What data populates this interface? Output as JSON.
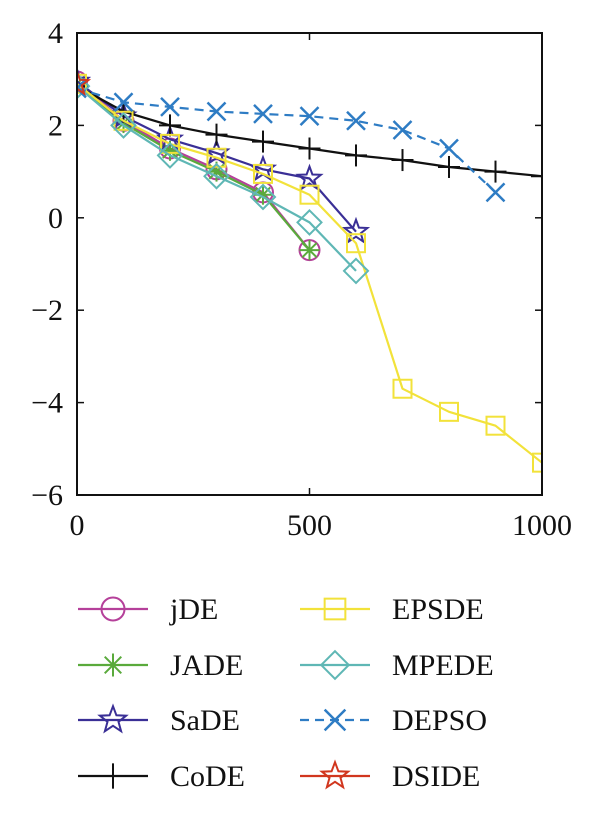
{
  "chart_data": {
    "type": "line",
    "title": "",
    "xlabel": "",
    "ylabel": "",
    "xlim": [
      0,
      1000
    ],
    "ylim": [
      -6,
      4
    ],
    "xticks": [
      0,
      500,
      1000
    ],
    "yticks": [
      4,
      2,
      0,
      -2,
      -4,
      -6
    ],
    "xtick_labels": [
      "0",
      "500",
      "1000"
    ],
    "ytick_labels": [
      "4",
      "2",
      "0",
      "−2",
      "−4",
      "−6"
    ],
    "grid": false,
    "legend_position": "below",
    "series": [
      {
        "name": "jDE",
        "color": "#b5409a",
        "marker": "circle",
        "dash": false,
        "x": [
          0,
          100,
          200,
          300,
          400,
          500
        ],
        "y": [
          2.95,
          2.1,
          1.5,
          1.05,
          0.55,
          -0.7
        ]
      },
      {
        "name": "JADE",
        "color": "#5aaa3c",
        "marker": "asterisk",
        "dash": false,
        "x": [
          0,
          100,
          200,
          300,
          400,
          500
        ],
        "y": [
          2.9,
          2.05,
          1.45,
          1.0,
          0.5,
          -0.7
        ]
      },
      {
        "name": "SaDE",
        "color": "#3a2f96",
        "marker": "star",
        "dash": false,
        "x": [
          0,
          100,
          200,
          300,
          400,
          500,
          600
        ],
        "y": [
          2.95,
          2.2,
          1.7,
          1.4,
          1.05,
          0.85,
          -0.3
        ]
      },
      {
        "name": "CoDE",
        "color": "#111111",
        "marker": "plus",
        "dash": false,
        "x": [
          0,
          100,
          200,
          300,
          400,
          500,
          600,
          700,
          800,
          900,
          1000
        ],
        "y": [
          2.85,
          2.3,
          2.0,
          1.8,
          1.65,
          1.5,
          1.35,
          1.25,
          1.1,
          1.0,
          0.9
        ]
      },
      {
        "name": "EPSDE",
        "color": "#f2e23a",
        "marker": "square",
        "dash": false,
        "x": [
          0,
          100,
          200,
          300,
          400,
          500,
          600,
          700,
          800,
          900,
          1000
        ],
        "y": [
          2.9,
          2.1,
          1.6,
          1.3,
          0.95,
          0.5,
          -0.55,
          -3.7,
          -4.2,
          -4.5,
          -5.3
        ]
      },
      {
        "name": "MPEDE",
        "color": "#5fb7b5",
        "marker": "diamond",
        "dash": false,
        "x": [
          0,
          100,
          200,
          300,
          400,
          500,
          600
        ],
        "y": [
          2.85,
          2.0,
          1.35,
          0.9,
          0.45,
          -0.1,
          -1.15
        ]
      },
      {
        "name": "DEPSO",
        "color": "#2e7cc4",
        "marker": "x",
        "dash": true,
        "x": [
          0,
          100,
          200,
          300,
          400,
          500,
          600,
          700,
          800,
          900
        ],
        "y": [
          2.8,
          2.5,
          2.4,
          2.3,
          2.25,
          2.2,
          2.1,
          1.9,
          1.5,
          0.55
        ]
      },
      {
        "name": "DSIDE",
        "color": "#d1361e",
        "marker": "star",
        "dash": false,
        "x": [
          0
        ],
        "y": [
          2.9
        ]
      }
    ]
  }
}
